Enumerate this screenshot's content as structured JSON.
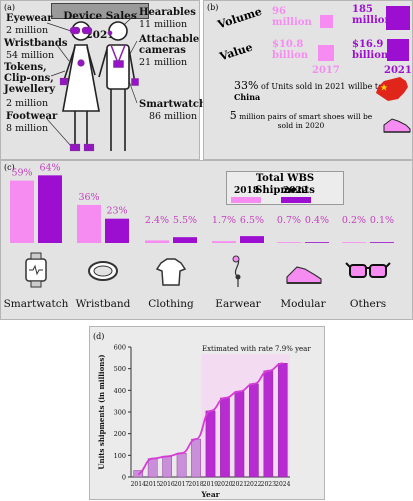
{
  "colors": {
    "pink": "#f68cf2",
    "purple": "#9c0fd0",
    "magenta": "#c33fbd",
    "panel": "#e3e3e3"
  },
  "panel_a": {
    "letter": "(a)",
    "title": "Device Sales 2021",
    "items": [
      {
        "name": "Eyewear",
        "value": "2 million"
      },
      {
        "name": "Wristbands",
        "value": "54 million"
      },
      {
        "name": "Tokens, Clip-ons, Jewellery",
        "value": "2 million"
      },
      {
        "name": "Footwear",
        "value": "8 million"
      },
      {
        "name": "Hearables",
        "value": "11 million"
      },
      {
        "name": "Attachable cameras",
        "value": "21 million"
      },
      {
        "name": "Smartwatches",
        "value": "86 million"
      }
    ]
  },
  "panel_b": {
    "letter": "(b)",
    "volume_label": "Volume",
    "value_label": "Value",
    "volume_2017": "96 million",
    "volume_2021": "185 million",
    "value_2017": "$10.8 billion",
    "value_2021": "$16.9 billion",
    "year_2017": "2017",
    "year_2021": "2021",
    "china_pct": "33%",
    "china_text": "of Units sold in 2021 willbe to",
    "china_word": "China",
    "shoes_number": "5",
    "shoes_text": "million pairs of smart shoes will be sold in 2020"
  },
  "panel_c": {
    "letter": "(c)",
    "legend_title": "Total WBS Shipments",
    "icon_names": [
      "smartwatch-icon",
      "wristband-icon",
      "clothing-icon",
      "earwear-icon",
      "modular-icon",
      "others-icon"
    ]
  },
  "panel_d": {
    "letter": "(d)",
    "annotation": "Extimated with rate 7.9% year"
  },
  "chart_data": [
    {
      "type": "bar",
      "title": "Total WBS Shipments",
      "categories": [
        "Smartwatch",
        "Wristband",
        "Clothing",
        "Earwear",
        "Modular",
        "Others"
      ],
      "series": [
        {
          "name": "2018",
          "values": [
            59,
            36,
            2.4,
            1.7,
            0.7,
            0.2
          ],
          "labels": [
            "59%",
            "36%",
            "2.4%",
            "1.7%",
            "0.7%",
            "0.2%"
          ]
        },
        {
          "name": "2022",
          "values": [
            64,
            23,
            5.5,
            6.5,
            0.4,
            0.1
          ],
          "labels": [
            "64%",
            "23%",
            "5.5%",
            "6.5%",
            "0.4%",
            "0.1%"
          ]
        }
      ],
      "ylim": [
        0,
        70
      ]
    },
    {
      "type": "bar",
      "x": [
        "2014",
        "2015",
        "2016",
        "2017",
        "2018",
        "2019",
        "2020",
        "2021",
        "2022",
        "2023",
        "2024"
      ],
      "values": [
        30,
        85,
        95,
        110,
        175,
        305,
        365,
        395,
        430,
        490,
        525
      ],
      "trend": "line",
      "xlabel": "Year",
      "ylabel": "Units shipments (in millions)",
      "ylim": [
        0,
        600
      ],
      "yticks": [
        0,
        100,
        200,
        300,
        400,
        500,
        600
      ],
      "estimated_from": "2019"
    }
  ]
}
